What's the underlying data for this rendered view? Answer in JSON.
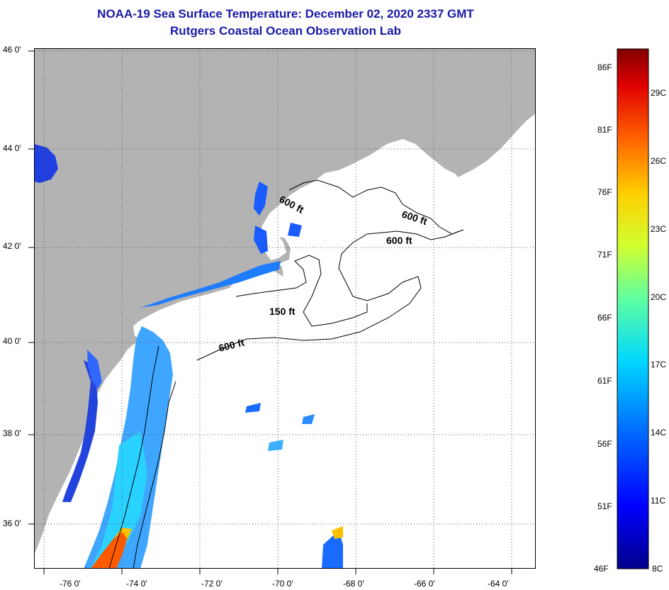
{
  "header": {
    "title": "NOAA-19 Sea Surface Temperature:  December 02, 2020 2337 GMT",
    "subtitle": "Rutgers Coastal Ocean Observation Lab"
  },
  "map": {
    "lat_labels": [
      "46 0'",
      "44 0'",
      "42 0'",
      "40 0'",
      "38 0'",
      "36 0'"
    ],
    "lon_labels": [
      "-76 0'",
      "-74 0'",
      "-72 0'",
      "-70 0'",
      "-68 0'",
      "-66 0'",
      "-64 0'"
    ],
    "isobath_labels": [
      "600 ft",
      "600 ft",
      "600 ft",
      "150 ft",
      "600 ft"
    ],
    "colors": {
      "land": "#b3b3b3",
      "ocean_cloud": "#ffffff",
      "contour": "#000000"
    }
  },
  "colorbar": {
    "fahrenheit_labels": [
      "86F",
      "81F",
      "76F",
      "71F",
      "66F",
      "61F",
      "56F",
      "51F",
      "46F"
    ],
    "celsius_labels": [
      "29C",
      "26C",
      "23C",
      "20C",
      "17C",
      "14C",
      "11C",
      "8C"
    ],
    "colors": [
      "#00008a",
      "#0000ff",
      "#0070ff",
      "#00d8ff",
      "#60ffa0",
      "#d0ff30",
      "#ffd000",
      "#ff6000",
      "#e00000",
      "#800000"
    ]
  }
}
